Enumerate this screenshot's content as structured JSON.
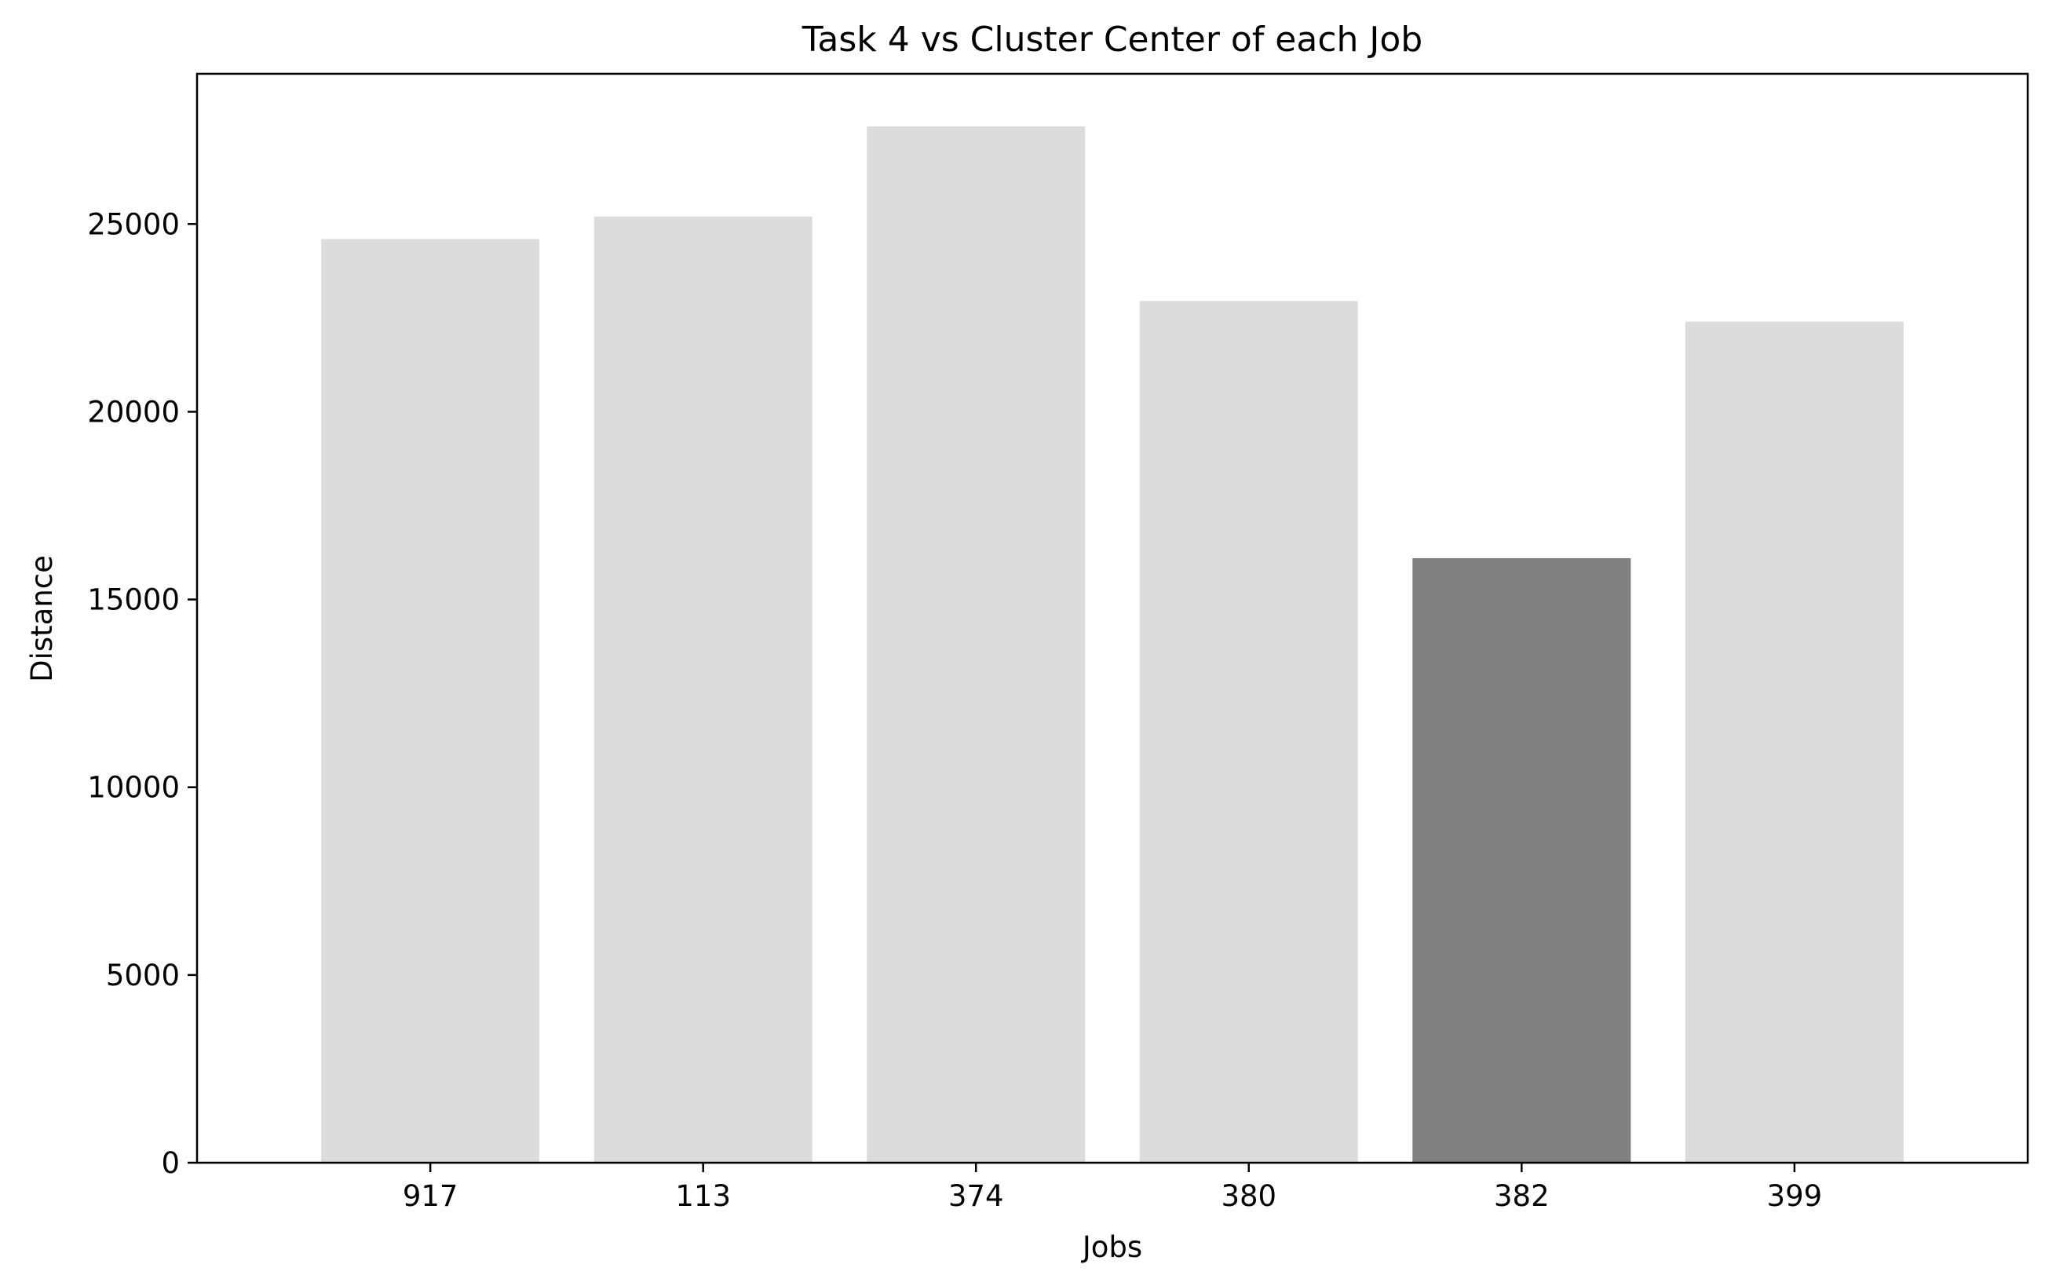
{
  "chart_data": {
    "type": "bar",
    "title": "Task 4 vs Cluster Center of each Job",
    "xlabel": "Jobs",
    "ylabel": "Distance",
    "categories": [
      "917",
      "113",
      "374",
      "380",
      "382",
      "399"
    ],
    "values": [
      24600,
      25200,
      27600,
      22950,
      16100,
      22400
    ],
    "highlight_index": 4,
    "ylim": [
      0,
      29000
    ],
    "yticks": [
      0,
      5000,
      10000,
      15000,
      20000,
      25000
    ],
    "ytick_labels": [
      "0",
      "5000",
      "10000",
      "15000",
      "20000",
      "25000"
    ],
    "grid": false,
    "legend": "none",
    "colors": {
      "bar": "#dcdcdc",
      "highlight": "#808080",
      "axis": "#000000"
    }
  }
}
